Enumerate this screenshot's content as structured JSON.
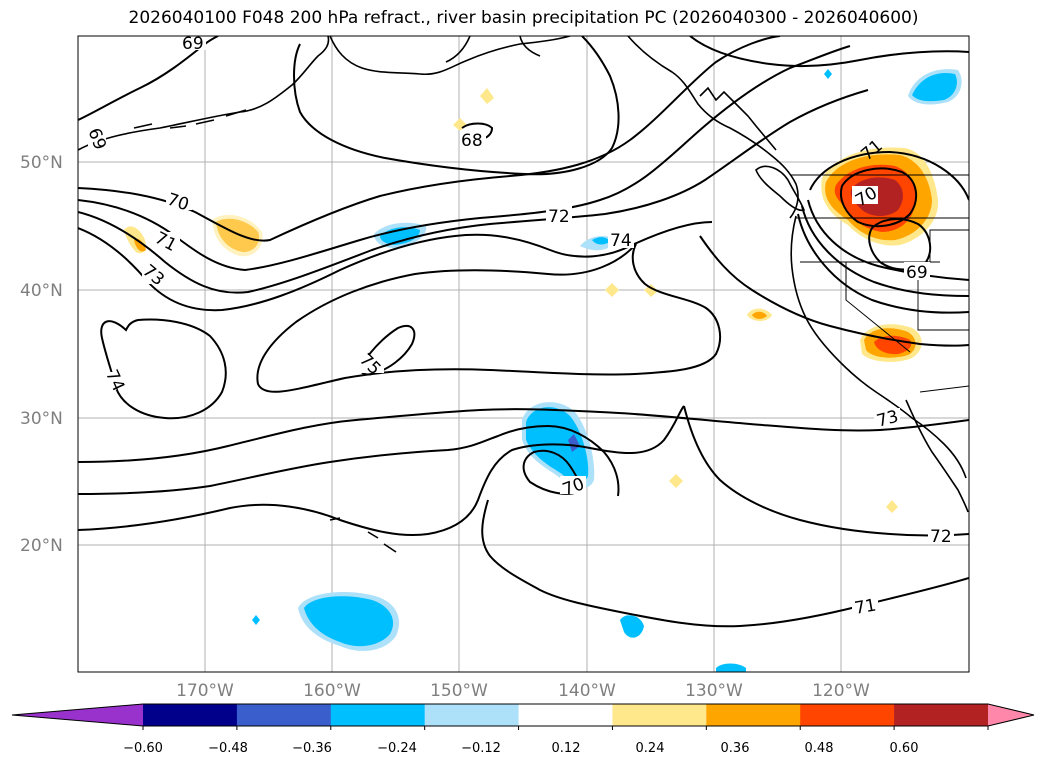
{
  "title": "2026040100 F048 200 hPa refract., river basin precipitation PC (2026040300 - 2026040600)",
  "lat_labels": [
    "50°N",
    "40°N",
    "30°N",
    "20°N"
  ],
  "lon_labels": [
    "170°W",
    "160°W",
    "150°W",
    "140°W",
    "130°W",
    "120°W"
  ],
  "contour_labels": [
    "69",
    "69",
    "68",
    "70",
    "71",
    "73",
    "72",
    "74",
    "75",
    "74",
    "70",
    "71",
    "70",
    "69",
    "73",
    "72",
    "71"
  ],
  "colorbar": {
    "colors": [
      "#9932CC",
      "#00008B",
      "#3A5FCD",
      "#00BFFF",
      "#ADE1FA",
      "#FFFFFF",
      "#FFE88C",
      "#FFA500",
      "#FF4500",
      "#B22222",
      "#FF88AA"
    ],
    "ticks": [
      "−0.60",
      "−0.48",
      "−0.36",
      "−0.24",
      "−0.12",
      "0.12",
      "0.24",
      "0.36",
      "0.48",
      "0.60"
    ]
  }
}
